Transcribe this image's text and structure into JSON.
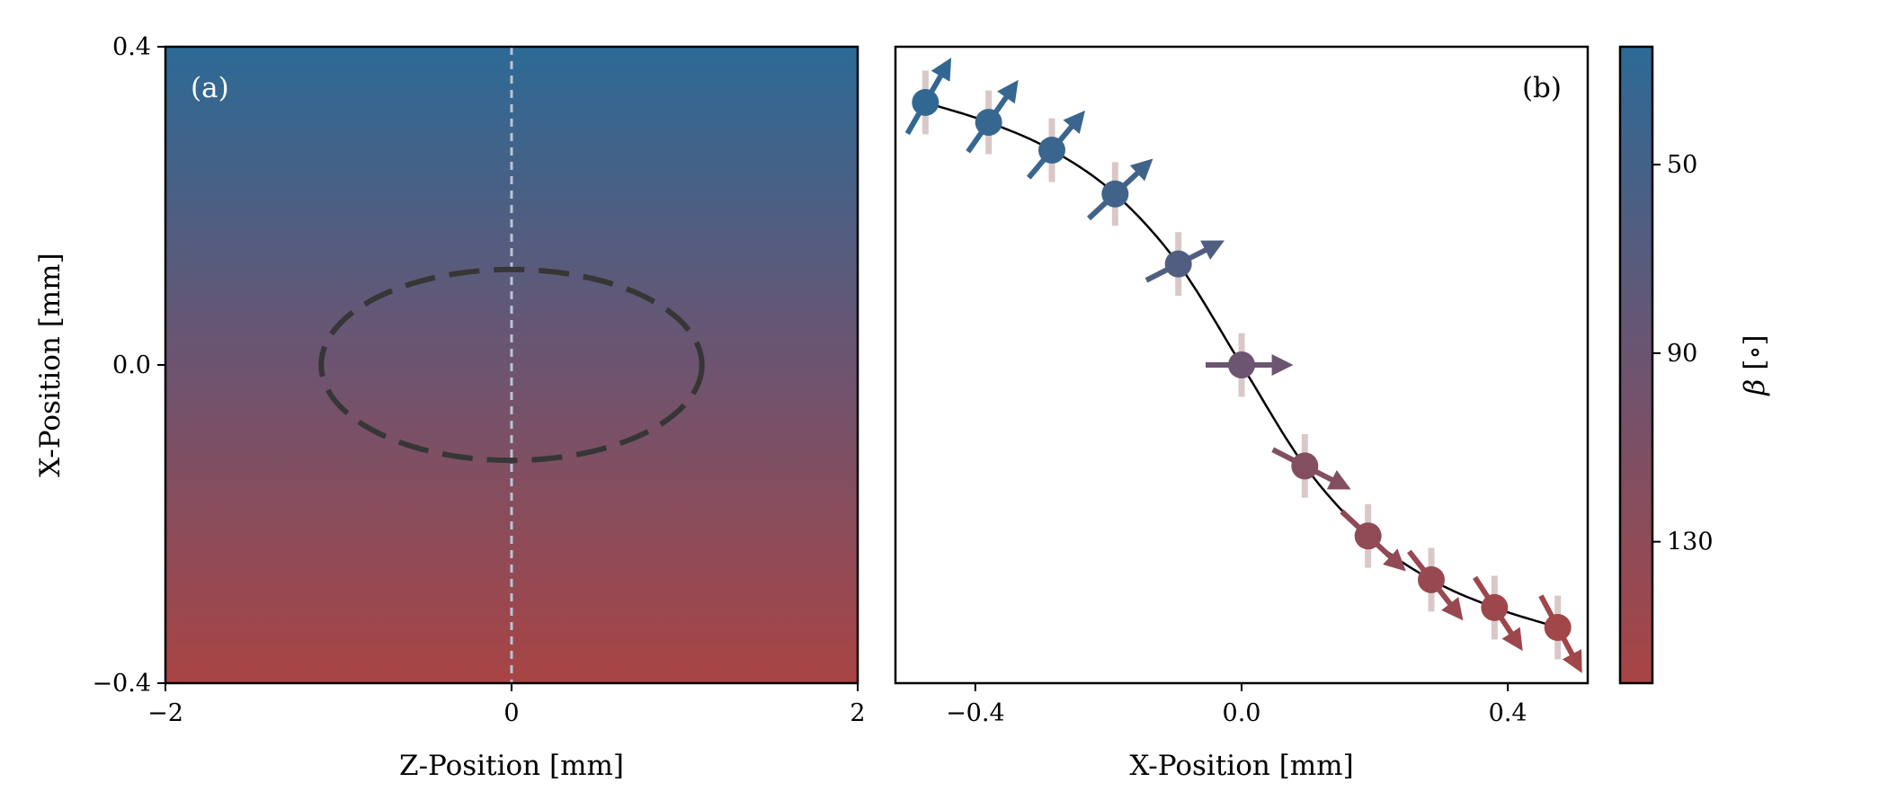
{
  "chart_data": [
    {
      "panel_label": "(a)",
      "type": "heatmap",
      "xlabel": "Z-Position [mm]",
      "ylabel": "X-Position [mm]",
      "xlim": [
        -2,
        2
      ],
      "ylim": [
        -0.4,
        0.4
      ],
      "xticks": [
        {
          "v": -2,
          "label": "−2"
        },
        {
          "v": 0,
          "label": "0"
        },
        {
          "v": 2,
          "label": "2"
        }
      ],
      "yticks": [
        {
          "v": -0.4,
          "label": "−0.4"
        },
        {
          "v": 0.0,
          "label": "0.0"
        },
        {
          "v": 0.4,
          "label": "0.4"
        }
      ],
      "field": {
        "variable": "beta",
        "beta_at_top": 35,
        "beta_at_bottom": 145
      },
      "vertical_line_x": 0,
      "ellipse": {
        "center": [
          0,
          0
        ],
        "semi_axis_z": 1.1,
        "semi_axis_x": 0.12
      }
    },
    {
      "panel_label": "(b)",
      "type": "scatter",
      "xlabel": "X-Position [mm]",
      "xlim": [
        -0.52,
        0.52
      ],
      "ylim": [
        -0.4,
        0.4
      ],
      "xticks": [
        {
          "v": -0.4,
          "label": "−0.4"
        },
        {
          "v": 0.0,
          "label": "0.0"
        },
        {
          "v": 0.4,
          "label": "0.4"
        }
      ],
      "points": [
        {
          "x": -0.475,
          "y": 0.33,
          "beta": 30
        },
        {
          "x": -0.38,
          "y": 0.305,
          "beta": 35
        },
        {
          "x": -0.285,
          "y": 0.27,
          "beta": 40
        },
        {
          "x": -0.19,
          "y": 0.215,
          "beta": 47
        },
        {
          "x": -0.095,
          "y": 0.127,
          "beta": 63
        },
        {
          "x": 0.0,
          "y": 0.0,
          "beta": 90
        },
        {
          "x": 0.095,
          "y": -0.127,
          "beta": 117
        },
        {
          "x": 0.19,
          "y": -0.215,
          "beta": 133
        },
        {
          "x": 0.285,
          "y": -0.27,
          "beta": 142
        },
        {
          "x": 0.38,
          "y": -0.305,
          "beta": 147
        },
        {
          "x": 0.475,
          "y": -0.33,
          "beta": 152
        }
      ],
      "error_half_height": 0.04
    }
  ],
  "colorbar": {
    "label_symbol": "β",
    "label_unit": "[∘]",
    "range": [
      25,
      160
    ],
    "ticks": [
      {
        "v": 50,
        "label": "50"
      },
      {
        "v": 90,
        "label": "90"
      },
      {
        "v": 130,
        "label": "130"
      }
    ]
  },
  "colors": {
    "low": "#2c6a96",
    "mid": "#6d5470",
    "high": "#a84444",
    "ellipse": "#363636",
    "vline": "#b8c4d4",
    "errorbar": "#d9c8c8",
    "curve": "#000000"
  }
}
